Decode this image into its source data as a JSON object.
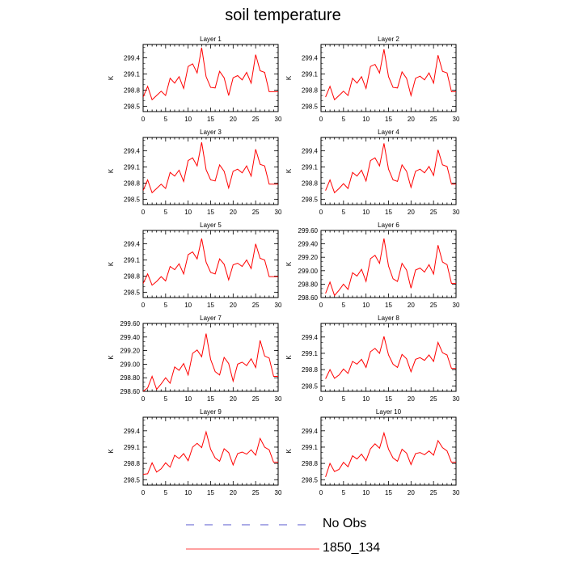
{
  "title": "soil temperature",
  "colors": {
    "model": "#ff0000",
    "obs": "#2020c0",
    "axis": "#000000"
  },
  "legend": {
    "items": [
      {
        "label": "No Obs",
        "style": "dashed",
        "color": "#2020c0"
      },
      {
        "label": "1850_134",
        "style": "solid",
        "color": "#ff0000"
      }
    ]
  },
  "chart_data": [
    {
      "type": "line",
      "title": "Layer 1",
      "ylabel": "K",
      "xlim": [
        0,
        30
      ],
      "ylim": [
        298.4,
        299.65
      ],
      "xticks": [
        0,
        5,
        10,
        15,
        20,
        25,
        30
      ],
      "yticks": [
        298.5,
        298.8,
        299.1,
        299.4
      ],
      "ytick_labels": [
        "298.5",
        "298.8",
        "299.1",
        "299.4"
      ],
      "series": [
        {
          "x": [
            0,
            1,
            2,
            3,
            4,
            5,
            6,
            7,
            8,
            9,
            10,
            11,
            12,
            13,
            14,
            15,
            16,
            17,
            18,
            19,
            20,
            21,
            22,
            23,
            24,
            25,
            26,
            27,
            28,
            29,
            30
          ],
          "values": [
            298.67,
            298.87,
            298.62,
            298.7,
            298.78,
            298.7,
            299.02,
            298.93,
            299.05,
            298.83,
            299.24,
            299.29,
            299.12,
            299.59,
            299.05,
            298.85,
            298.84,
            299.15,
            299.03,
            298.7,
            299.03,
            299.07,
            298.99,
            299.13,
            298.93,
            299.46,
            299.16,
            299.13,
            298.77,
            298.77,
            298.77
          ]
        }
      ]
    },
    {
      "type": "line",
      "title": "Layer 2",
      "ylabel": "K",
      "xlim": [
        0,
        30
      ],
      "ylim": [
        298.4,
        299.65
      ],
      "xticks": [
        0,
        5,
        10,
        15,
        20,
        25,
        30
      ],
      "yticks": [
        298.5,
        298.8,
        299.1,
        299.4
      ],
      "ytick_labels": [
        "298.5",
        "298.8",
        "299.1",
        "299.4"
      ],
      "series": [
        {
          "x": [
            1,
            2,
            3,
            4,
            5,
            6,
            7,
            8,
            9,
            10,
            11,
            12,
            13,
            14,
            15,
            16,
            17,
            18,
            19,
            20,
            21,
            22,
            23,
            24,
            25,
            26,
            27,
            28,
            29,
            30
          ],
          "values": [
            298.67,
            298.87,
            298.62,
            298.7,
            298.78,
            298.7,
            299.02,
            298.93,
            299.05,
            298.83,
            299.24,
            299.28,
            299.12,
            299.56,
            299.05,
            298.85,
            298.84,
            299.14,
            299.02,
            298.7,
            299.02,
            299.06,
            298.99,
            299.12,
            298.93,
            299.45,
            299.15,
            299.12,
            298.77,
            298.77
          ]
        }
      ]
    },
    {
      "type": "line",
      "title": "Layer 3",
      "ylabel": "K",
      "xlim": [
        0,
        30
      ],
      "ylim": [
        298.4,
        299.65
      ],
      "xticks": [
        0,
        5,
        10,
        15,
        20,
        25,
        30
      ],
      "yticks": [
        298.5,
        298.8,
        299.1,
        299.4
      ],
      "ytick_labels": [
        "298.5",
        "298.8",
        "299.1",
        "299.4"
      ],
      "series": [
        {
          "x": [
            0,
            1,
            2,
            3,
            4,
            5,
            6,
            7,
            8,
            9,
            10,
            11,
            12,
            13,
            14,
            15,
            16,
            17,
            18,
            19,
            20,
            21,
            22,
            23,
            24,
            25,
            26,
            27,
            28,
            29,
            30
          ],
          "values": [
            298.66,
            298.86,
            298.62,
            298.7,
            298.78,
            298.7,
            299.0,
            298.93,
            299.04,
            298.83,
            299.22,
            299.27,
            299.12,
            299.56,
            299.05,
            298.86,
            298.84,
            299.14,
            299.02,
            298.71,
            299.02,
            299.06,
            298.99,
            299.12,
            298.93,
            299.43,
            299.15,
            299.12,
            298.78,
            298.78,
            298.78
          ]
        }
      ]
    },
    {
      "type": "line",
      "title": "Layer 4",
      "ylabel": "K",
      "xlim": [
        0,
        30
      ],
      "ylim": [
        298.4,
        299.65
      ],
      "xticks": [
        0,
        5,
        10,
        15,
        20,
        25,
        30
      ],
      "yticks": [
        298.5,
        298.8,
        299.1,
        299.4
      ],
      "ytick_labels": [
        "298.5",
        "298.8",
        "299.1",
        "299.4"
      ],
      "series": [
        {
          "x": [
            1,
            2,
            3,
            4,
            5,
            6,
            7,
            8,
            9,
            10,
            11,
            12,
            13,
            14,
            15,
            16,
            17,
            18,
            19,
            20,
            21,
            22,
            23,
            24,
            25,
            26,
            27,
            28,
            29,
            30
          ],
          "values": [
            298.66,
            298.86,
            298.62,
            298.7,
            298.79,
            298.7,
            299.0,
            298.93,
            299.04,
            298.84,
            299.22,
            299.27,
            299.12,
            299.54,
            299.06,
            298.86,
            298.83,
            299.14,
            299.02,
            298.72,
            299.02,
            299.06,
            298.99,
            299.11,
            298.94,
            299.42,
            299.14,
            299.11,
            298.78,
            298.78
          ]
        }
      ]
    },
    {
      "type": "line",
      "title": "Layer 5",
      "ylabel": "K",
      "xlim": [
        0,
        30
      ],
      "ylim": [
        298.4,
        299.65
      ],
      "xticks": [
        0,
        5,
        10,
        15,
        20,
        25,
        30
      ],
      "yticks": [
        298.5,
        298.8,
        299.1,
        299.4
      ],
      "ytick_labels": [
        "298.5",
        "298.8",
        "299.1",
        "299.4"
      ],
      "series": [
        {
          "x": [
            0,
            1,
            2,
            3,
            4,
            5,
            6,
            7,
            8,
            9,
            10,
            11,
            12,
            13,
            14,
            15,
            16,
            17,
            18,
            19,
            20,
            21,
            22,
            23,
            24,
            25,
            26,
            27,
            28,
            29,
            30
          ],
          "values": [
            298.66,
            298.84,
            298.63,
            298.7,
            298.79,
            298.71,
            298.98,
            298.92,
            299.03,
            298.84,
            299.2,
            299.25,
            299.12,
            299.5,
            299.06,
            298.87,
            298.84,
            299.12,
            299.02,
            298.73,
            299.01,
            299.04,
            298.98,
            299.1,
            298.94,
            299.4,
            299.13,
            299.1,
            298.79,
            298.79,
            298.79
          ]
        }
      ]
    },
    {
      "type": "line",
      "title": "Layer 6",
      "ylabel": "K",
      "xlim": [
        0,
        30
      ],
      "ylim": [
        298.6,
        299.6
      ],
      "xticks": [
        0,
        5,
        10,
        15,
        20,
        25,
        30
      ],
      "yticks": [
        298.6,
        298.8,
        299.0,
        299.2,
        299.4,
        299.6
      ],
      "ytick_labels": [
        "298.60",
        "298.80",
        "299.00",
        "299.20",
        "299.40",
        "299.60"
      ],
      "series": [
        {
          "x": [
            1,
            2,
            3,
            4,
            5,
            6,
            7,
            8,
            9,
            10,
            11,
            12,
            13,
            14,
            15,
            16,
            17,
            18,
            19,
            20,
            21,
            22,
            23,
            24,
            25,
            26,
            27,
            28,
            29,
            30
          ],
          "values": [
            298.66,
            298.83,
            298.63,
            298.71,
            298.8,
            298.72,
            298.97,
            298.92,
            299.02,
            298.84,
            299.18,
            299.23,
            299.11,
            299.48,
            299.07,
            298.88,
            298.84,
            299.11,
            299.01,
            298.74,
            299.01,
            299.04,
            298.98,
            299.09,
            298.95,
            299.38,
            299.13,
            299.09,
            298.81,
            298.81
          ]
        }
      ]
    },
    {
      "type": "line",
      "title": "Layer 7",
      "ylabel": "K",
      "xlim": [
        0,
        30
      ],
      "ylim": [
        298.6,
        299.6
      ],
      "xticks": [
        0,
        5,
        10,
        15,
        20,
        25,
        30
      ],
      "yticks": [
        298.6,
        298.8,
        299.0,
        299.2,
        299.4,
        299.6
      ],
      "ytick_labels": [
        "298.60",
        "298.80",
        "299.00",
        "299.20",
        "299.40",
        "299.60"
      ],
      "series": [
        {
          "x": [
            0,
            1,
            2,
            3,
            4,
            5,
            6,
            7,
            8,
            9,
            10,
            11,
            12,
            13,
            14,
            15,
            16,
            17,
            18,
            19,
            20,
            21,
            22,
            23,
            24,
            25,
            26,
            27,
            28,
            29,
            30
          ],
          "values": [
            298.6,
            298.65,
            298.82,
            298.63,
            298.71,
            298.8,
            298.72,
            298.96,
            298.91,
            299.01,
            298.84,
            299.16,
            299.21,
            299.11,
            299.45,
            299.07,
            298.89,
            298.84,
            299.1,
            299.01,
            298.75,
            299.0,
            299.03,
            298.98,
            299.08,
            298.95,
            299.35,
            299.12,
            299.09,
            298.82,
            298.82
          ]
        }
      ]
    },
    {
      "type": "line",
      "title": "Layer 8",
      "ylabel": "K",
      "xlim": [
        0,
        30
      ],
      "ylim": [
        298.4,
        299.65
      ],
      "xticks": [
        0,
        5,
        10,
        15,
        20,
        25,
        30
      ],
      "yticks": [
        298.5,
        298.8,
        299.1,
        299.4
      ],
      "ytick_labels": [
        "298.5",
        "298.8",
        "299.1",
        "299.4"
      ],
      "series": [
        {
          "x": [
            1,
            2,
            3,
            4,
            5,
            6,
            7,
            8,
            9,
            10,
            11,
            12,
            13,
            14,
            15,
            16,
            17,
            18,
            19,
            20,
            21,
            22,
            23,
            24,
            25,
            26,
            27,
            28,
            29,
            30
          ],
          "values": [
            298.63,
            298.8,
            298.64,
            298.7,
            298.81,
            298.73,
            298.95,
            298.9,
            298.99,
            298.84,
            299.13,
            299.19,
            299.1,
            299.41,
            299.07,
            298.9,
            298.84,
            299.08,
            299.0,
            298.76,
            298.99,
            299.02,
            298.97,
            299.07,
            298.95,
            299.3,
            299.11,
            299.07,
            298.82,
            298.82
          ]
        }
      ]
    },
    {
      "type": "line",
      "title": "Layer 9",
      "ylabel": "K",
      "xlim": [
        0,
        30
      ],
      "ylim": [
        298.4,
        299.65
      ],
      "xticks": [
        0,
        5,
        10,
        15,
        20,
        25,
        30
      ],
      "yticks": [
        298.5,
        298.8,
        299.1,
        299.4
      ],
      "ytick_labels": [
        "298.5",
        "298.8",
        "299.1",
        "299.4"
      ],
      "series": [
        {
          "x": [
            0,
            1,
            2,
            3,
            4,
            5,
            6,
            7,
            8,
            9,
            10,
            11,
            12,
            13,
            14,
            15,
            16,
            17,
            18,
            19,
            20,
            21,
            22,
            23,
            24,
            25,
            26,
            27,
            28,
            29,
            30
          ],
          "values": [
            298.6,
            298.61,
            298.81,
            298.64,
            298.7,
            298.81,
            298.73,
            298.95,
            298.89,
            298.98,
            298.85,
            299.1,
            299.17,
            299.09,
            299.38,
            299.06,
            298.9,
            298.84,
            299.07,
            299.0,
            298.77,
            298.98,
            299.01,
            298.97,
            299.05,
            298.95,
            299.26,
            299.1,
            299.05,
            298.82,
            298.82
          ]
        }
      ]
    },
    {
      "type": "line",
      "title": "Layer 10",
      "ylabel": "K",
      "xlim": [
        0,
        30
      ],
      "ylim": [
        298.4,
        299.65
      ],
      "xticks": [
        0,
        5,
        10,
        15,
        20,
        25,
        30
      ],
      "yticks": [
        298.5,
        298.8,
        299.1,
        299.4
      ],
      "ytick_labels": [
        "298.5",
        "298.8",
        "299.1",
        "299.4"
      ],
      "series": [
        {
          "x": [
            1,
            2,
            3,
            4,
            5,
            6,
            7,
            8,
            9,
            10,
            11,
            12,
            13,
            14,
            15,
            16,
            17,
            18,
            19,
            20,
            21,
            22,
            23,
            24,
            25,
            26,
            27,
            28,
            29,
            30
          ],
          "values": [
            298.55,
            298.8,
            298.65,
            298.69,
            298.82,
            298.74,
            298.94,
            298.88,
            298.97,
            298.85,
            299.07,
            299.16,
            299.08,
            299.36,
            299.06,
            298.9,
            298.84,
            299.06,
            298.99,
            298.78,
            298.98,
            299.0,
            298.96,
            299.03,
            298.95,
            299.22,
            299.09,
            299.03,
            298.82,
            298.82
          ]
        }
      ]
    }
  ]
}
